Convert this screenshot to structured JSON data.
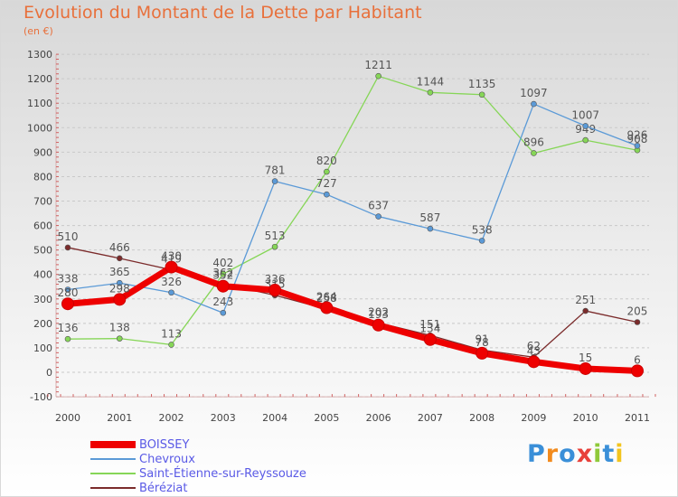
{
  "header": {
    "title": "Evolution du Montant de la Dette par Habitant",
    "subtitle": "(en €)"
  },
  "logo": {
    "text": "Proxiti"
  },
  "chart_data": {
    "type": "line",
    "title": "Evolution du Montant de la Dette par Habitant",
    "ylabel": "(en €)",
    "xlabel": "",
    "ylim": [
      -100,
      1300
    ],
    "yticks": [
      -100,
      0,
      100,
      200,
      300,
      400,
      500,
      600,
      700,
      800,
      900,
      1000,
      1100,
      1200,
      1300
    ],
    "x": [
      "2000",
      "2001",
      "2002",
      "2003",
      "2004",
      "2005",
      "2006",
      "2007",
      "2008",
      "2009",
      "2010",
      "2011"
    ],
    "grid": "horizontal dashed",
    "legend_position": "bottom-left",
    "series": [
      {
        "name": "Bérézia​t",
        "color": "#7b2b2b",
        "values": [
          510,
          466,
          419,
          362,
          315,
          258,
          202,
          151,
          91,
          62,
          251,
          205
        ],
        "labels": [
          "510",
          "466",
          "419",
          "362",
          "315",
          "258",
          "202",
          "151",
          "91",
          "62",
          "251",
          "205"
        ]
      },
      {
        "name": "Saint-Étienne-sur-Reyssouze",
        "color": "#86d657",
        "values": [
          136,
          138,
          113,
          402,
          513,
          820,
          1211,
          1144,
          1135,
          896,
          949,
          908
        ],
        "labels": [
          "136",
          "138",
          "113",
          "402",
          "513",
          "820",
          "1211",
          "1144",
          "1135",
          "896",
          "949",
          "908"
        ]
      },
      {
        "name": "Chevroux",
        "color": "#5b9ad7",
        "values": [
          338,
          365,
          326,
          243,
          781,
          727,
          637,
          587,
          538,
          1097,
          1007,
          926
        ],
        "labels": [
          "338",
          "365",
          "326",
          "243",
          "781",
          "727",
          "637",
          "587",
          "538",
          "1097",
          "1007",
          "926"
        ]
      },
      {
        "name": "BOISSEY",
        "color": "#ee0000",
        "values": [
          280,
          298,
          430,
          352,
          336,
          264,
          193,
          134,
          78,
          43,
          15,
          6
        ],
        "labels": [
          "280",
          "298",
          "430",
          "352",
          "336",
          "264",
          "193",
          "134",
          "78",
          "43",
          "15",
          "6"
        ]
      }
    ],
    "legend": [
      "BOISSEY",
      "Chevroux",
      "Saint-Étienne-sur-Reyssouze",
      "Béréziat"
    ]
  }
}
